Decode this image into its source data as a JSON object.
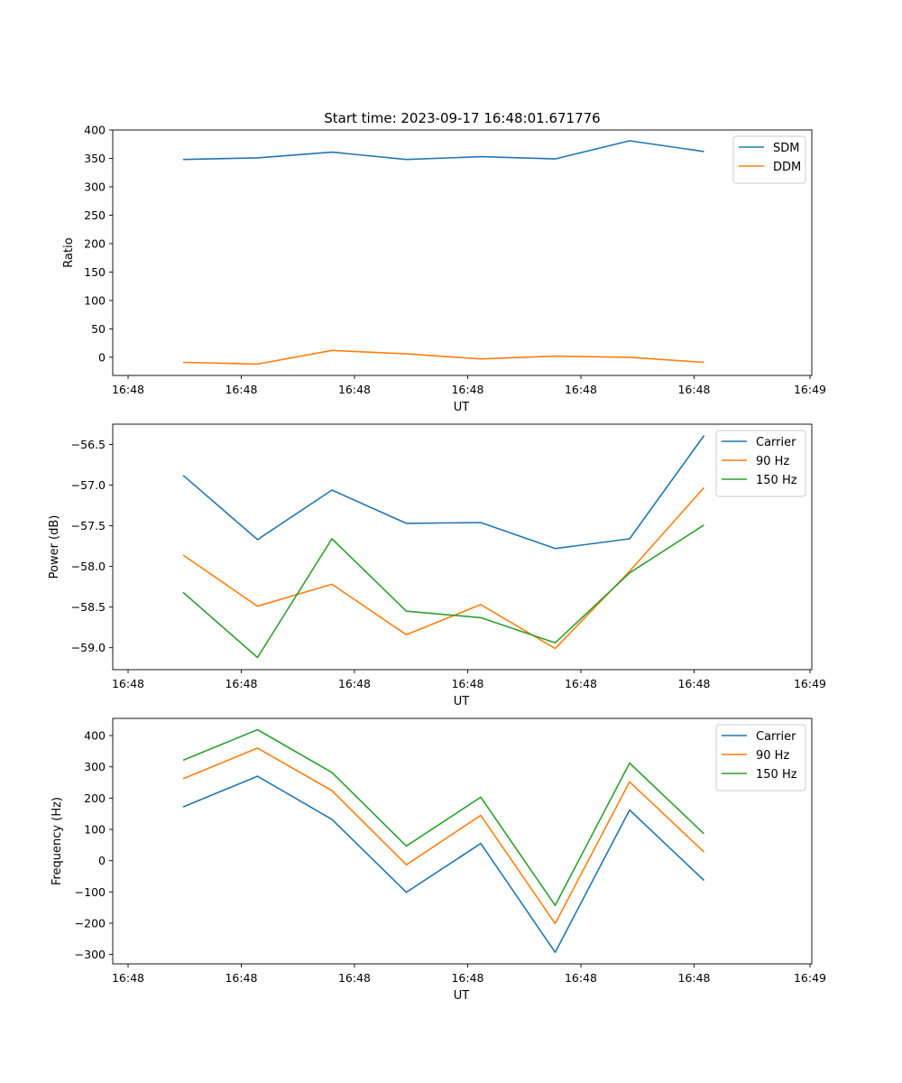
{
  "chart_data": [
    {
      "type": "line",
      "title": "Start time: 2023-09-17 16:48:01.671776",
      "xlabel": "UT",
      "ylabel": "Ratio",
      "x_index": [
        0,
        1,
        2,
        3,
        4,
        5,
        6,
        7
      ],
      "x_tick_labels": [
        "16:48",
        "16:48",
        "16:48",
        "16:48",
        "16:48",
        "16:48",
        "16:48"
      ],
      "x_last_tick_label": "16:49",
      "ylim": [
        -32,
        400
      ],
      "y_ticks": [
        0,
        50,
        100,
        150,
        200,
        250,
        300,
        350,
        400
      ],
      "legend_position": "top-right",
      "series": [
        {
          "name": "SDM",
          "color": "#1f77b4",
          "values": [
            348,
            351,
            361,
            348,
            353,
            349,
            381,
            362
          ]
        },
        {
          "name": "DDM",
          "color": "#ff7f0e",
          "values": [
            -9,
            -12,
            12,
            6,
            -3,
            2,
            0,
            -9
          ]
        }
      ]
    },
    {
      "type": "line",
      "title": "",
      "xlabel": "UT",
      "ylabel": "Power (dB)",
      "x_index": [
        0,
        1,
        2,
        3,
        4,
        5,
        6,
        7
      ],
      "x_tick_labels": [
        "16:48",
        "16:48",
        "16:48",
        "16:48",
        "16:48",
        "16:48",
        "16:48"
      ],
      "x_last_tick_label": "16:49",
      "ylim": [
        -59.27,
        -56.25
      ],
      "y_ticks": [
        -59.0,
        -58.5,
        -58.0,
        -57.5,
        -57.0,
        -56.5
      ],
      "y_tick_labels": [
        "−59.0",
        "−58.5",
        "−58.0",
        "−57.5",
        "−57.0",
        "−56.5"
      ],
      "legend_position": "top-right",
      "series": [
        {
          "name": "Carrier",
          "color": "#1f77b4",
          "values": [
            -56.88,
            -57.67,
            -57.06,
            -57.47,
            -57.46,
            -57.78,
            -57.66,
            -56.39
          ]
        },
        {
          "name": "90 Hz",
          "color": "#ff7f0e",
          "values": [
            -57.86,
            -58.49,
            -58.22,
            -58.84,
            -58.47,
            -59.01,
            -58.06,
            -57.03
          ]
        },
        {
          "name": "150 Hz",
          "color": "#2ca02c",
          "values": [
            -58.32,
            -59.12,
            -57.66,
            -58.55,
            -58.63,
            -58.94,
            -58.08,
            -57.49
          ]
        }
      ]
    },
    {
      "type": "line",
      "title": "",
      "xlabel": "UT",
      "ylabel": "Frequency (Hz)",
      "x_index": [
        0,
        1,
        2,
        3,
        4,
        5,
        6,
        7
      ],
      "x_tick_labels": [
        "16:48",
        "16:48",
        "16:48",
        "16:48",
        "16:48",
        "16:48",
        "16:48"
      ],
      "x_last_tick_label": "16:49",
      "ylim": [
        -330,
        455
      ],
      "y_ticks": [
        -300,
        -200,
        -100,
        0,
        100,
        200,
        300,
        400
      ],
      "y_tick_labels": [
        "−300",
        "−200",
        "−100",
        "0",
        "100",
        "200",
        "300",
        "400"
      ],
      "legend_position": "top-right",
      "series": [
        {
          "name": "Carrier",
          "color": "#1f77b4",
          "values": [
            172,
            270,
            132,
            -101,
            55,
            -293,
            162,
            -63
          ]
        },
        {
          "name": "90 Hz",
          "color": "#ff7f0e",
          "values": [
            262,
            360,
            224,
            -13,
            145,
            -201,
            252,
            28
          ]
        },
        {
          "name": "150 Hz",
          "color": "#2ca02c",
          "values": [
            321,
            419,
            282,
            47,
            203,
            -143,
            312,
            86
          ]
        }
      ]
    }
  ]
}
